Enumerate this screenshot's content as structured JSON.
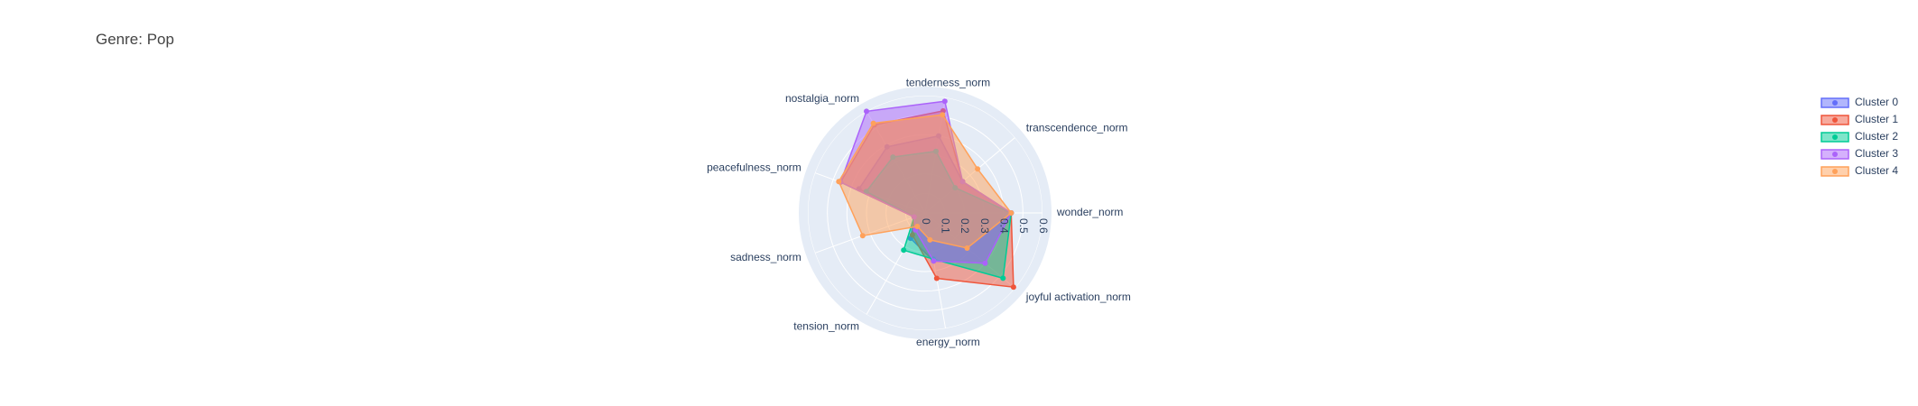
{
  "chart_data": {
    "type": "radar",
    "title": "Genre: Pop",
    "axes": [
      "wonder_norm",
      "transcendence_norm",
      "tenderness_norm",
      "nostalgia_norm",
      "peacefulness_norm",
      "sadness_norm",
      "tension_norm",
      "energy_norm",
      "joyful activation_norm"
    ],
    "radial_ticks": [
      "0",
      "0.1",
      "0.2",
      "0.3",
      "0.4",
      "0.5",
      "0.6"
    ],
    "radial_range": [
      0,
      0.6
    ],
    "grid": true,
    "legend_position": "top-right",
    "series": [
      {
        "name": "Cluster 0",
        "color": "#636efa",
        "values": [
          0.44,
          0.25,
          0.4,
          0.39,
          0.36,
          0.06,
          0.15,
          0.25,
          0.4
        ]
      },
      {
        "name": "Cluster 1",
        "color": "#ef553b",
        "values": [
          0.44,
          0.25,
          0.53,
          0.52,
          0.46,
          0.06,
          0.13,
          0.34,
          0.59
        ]
      },
      {
        "name": "Cluster 2",
        "color": "#00cc96",
        "values": [
          0.44,
          0.2,
          0.32,
          0.33,
          0.32,
          0.06,
          0.22,
          0.24,
          0.52
        ]
      },
      {
        "name": "Cluster 3",
        "color": "#ab63fa",
        "values": [
          0.44,
          0.25,
          0.58,
          0.6,
          0.46,
          0.06,
          0.1,
          0.25,
          0.4
        ]
      },
      {
        "name": "Cluster 4",
        "color": "#ffa15a",
        "values": [
          0.44,
          0.35,
          0.51,
          0.53,
          0.47,
          0.34,
          0.08,
          0.14,
          0.28
        ]
      }
    ]
  }
}
